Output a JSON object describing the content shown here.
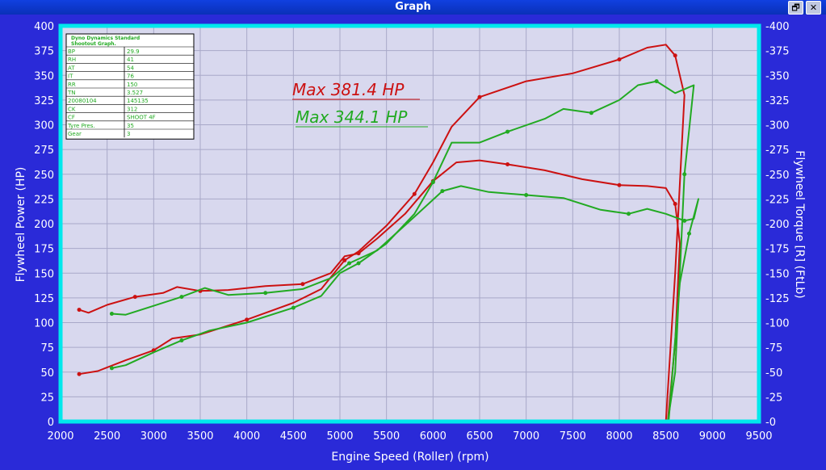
{
  "window": {
    "title": "Graph",
    "restore_glyph": "🗗",
    "close_glyph": "✕"
  },
  "chart_data": {
    "type": "line",
    "xlabel": "Engine Speed (Roller) (rpm)",
    "ylabel": "Flywheel Power (HP)",
    "ylabel_right": "Flywheel Torque [R] (FtLb)",
    "xlim": [
      2000,
      9500
    ],
    "ylim": [
      0,
      400
    ],
    "xticks": [
      2000,
      2500,
      3000,
      3500,
      4000,
      4500,
      5000,
      5500,
      6000,
      6500,
      7000,
      7500,
      8000,
      8500,
      9000,
      9500
    ],
    "yticks": [
      0,
      25,
      50,
      75,
      100,
      125,
      150,
      175,
      200,
      225,
      250,
      275,
      300,
      325,
      350,
      375,
      400
    ],
    "grid": true,
    "colors": {
      "red": "#cc1111",
      "green": "#22aa22",
      "plot_bg": "#d8d8ee",
      "frame": "#00e8ec"
    },
    "annotations": [
      {
        "text": "Max 381.4 HP",
        "color": "#cc1111"
      },
      {
        "text": "Max 344.1 HP",
        "color": "#22aa22"
      }
    ],
    "info_table": {
      "header": [
        "Dyno Dynamics Standard",
        "Shootout Graph."
      ],
      "rows": [
        [
          "BP",
          "29.9"
        ],
        [
          "RH",
          "41"
        ],
        [
          "AT",
          "54"
        ],
        [
          "IT",
          "76"
        ],
        [
          "RR",
          "150"
        ],
        [
          "TN",
          "3.527"
        ],
        [
          "20080104",
          "145135"
        ],
        [
          "CK",
          "312"
        ],
        [
          "CF",
          "SHOOT 4F"
        ],
        [
          "Tyre Pres.",
          "35"
        ],
        [
          "Gear",
          "3"
        ]
      ]
    },
    "series": [
      {
        "color": "red",
        "kind": "power",
        "points": [
          [
            2200,
            48
          ],
          [
            2400,
            51
          ],
          [
            2700,
            62
          ],
          [
            3000,
            72
          ],
          [
            3200,
            84
          ],
          [
            3500,
            88
          ],
          [
            4000,
            103
          ],
          [
            4500,
            120
          ],
          [
            4800,
            134
          ],
          [
            5050,
            163
          ],
          [
            5200,
            172
          ],
          [
            5500,
            198
          ],
          [
            5800,
            230
          ],
          [
            6000,
            262
          ],
          [
            6200,
            298
          ],
          [
            6500,
            328
          ],
          [
            7000,
            344
          ],
          [
            7500,
            352
          ],
          [
            8000,
            366
          ],
          [
            8300,
            378
          ],
          [
            8500,
            381
          ],
          [
            8600,
            370
          ],
          [
            8700,
            330
          ],
          [
            8600,
            150
          ],
          [
            8500,
            0
          ]
        ]
      },
      {
        "color": "red",
        "kind": "torque",
        "points": [
          [
            2200,
            113
          ],
          [
            2300,
            110
          ],
          [
            2500,
            118
          ],
          [
            2800,
            126
          ],
          [
            3100,
            130
          ],
          [
            3250,
            136
          ],
          [
            3500,
            132
          ],
          [
            3800,
            133
          ],
          [
            4200,
            137
          ],
          [
            4600,
            139
          ],
          [
            4900,
            150
          ],
          [
            5050,
            167
          ],
          [
            5200,
            170
          ],
          [
            5400,
            185
          ],
          [
            5700,
            210
          ],
          [
            6000,
            243
          ],
          [
            6250,
            262
          ],
          [
            6500,
            264
          ],
          [
            6800,
            260
          ],
          [
            7200,
            254
          ],
          [
            7600,
            245
          ],
          [
            8000,
            239
          ],
          [
            8300,
            238
          ],
          [
            8500,
            236
          ],
          [
            8600,
            220
          ],
          [
            8650,
            180
          ],
          [
            8600,
            80
          ],
          [
            8520,
            0
          ]
        ]
      },
      {
        "color": "green",
        "kind": "power",
        "points": [
          [
            2550,
            54
          ],
          [
            2700,
            57
          ],
          [
            3000,
            70
          ],
          [
            3300,
            82
          ],
          [
            3600,
            92
          ],
          [
            4000,
            100
          ],
          [
            4500,
            115
          ],
          [
            4800,
            127
          ],
          [
            5000,
            150
          ],
          [
            5200,
            160
          ],
          [
            5500,
            180
          ],
          [
            5800,
            210
          ],
          [
            6000,
            242
          ],
          [
            6200,
            282
          ],
          [
            6500,
            282
          ],
          [
            6800,
            293
          ],
          [
            7200,
            306
          ],
          [
            7400,
            316
          ],
          [
            7700,
            312
          ],
          [
            8000,
            325
          ],
          [
            8200,
            340
          ],
          [
            8400,
            344
          ],
          [
            8600,
            332
          ],
          [
            8800,
            340
          ],
          [
            8700,
            250
          ],
          [
            8650,
            150
          ],
          [
            8600,
            50
          ],
          [
            8520,
            0
          ]
        ]
      },
      {
        "color": "green",
        "kind": "torque",
        "points": [
          [
            2550,
            109
          ],
          [
            2700,
            108
          ],
          [
            3000,
            117
          ],
          [
            3300,
            126
          ],
          [
            3550,
            135
          ],
          [
            3800,
            128
          ],
          [
            4200,
            130
          ],
          [
            4600,
            134
          ],
          [
            4900,
            145
          ],
          [
            5100,
            160
          ],
          [
            5400,
            173
          ],
          [
            5800,
            207
          ],
          [
            6100,
            233
          ],
          [
            6300,
            238
          ],
          [
            6600,
            232
          ],
          [
            7000,
            229
          ],
          [
            7400,
            226
          ],
          [
            7800,
            214
          ],
          [
            8100,
            210
          ],
          [
            8300,
            215
          ],
          [
            8500,
            210
          ],
          [
            8700,
            203
          ],
          [
            8800,
            205
          ],
          [
            8850,
            225
          ],
          [
            8750,
            190
          ],
          [
            8650,
            140
          ],
          [
            8580,
            60
          ],
          [
            8530,
            0
          ]
        ]
      }
    ]
  }
}
